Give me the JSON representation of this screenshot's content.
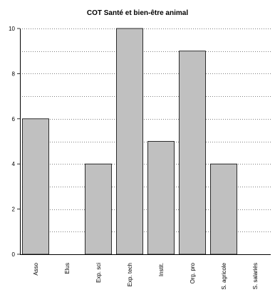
{
  "chart_data": {
    "type": "bar",
    "title": "COT Santé et bien-être animal",
    "xlabel": "",
    "ylabel": "",
    "categories": [
      "Asso",
      "Elus",
      "Exp. sci",
      "Exp. tech",
      "Instit.",
      "Org. pro",
      "S. agricole",
      "S. salariés"
    ],
    "values": [
      6,
      0,
      4,
      10,
      5,
      9,
      4,
      0
    ],
    "ylim": [
      0,
      10
    ],
    "yticks": [
      0,
      2,
      4,
      6,
      8,
      10
    ],
    "grid": true,
    "legend": "none",
    "colors": {
      "bar_fill": "#c0c0c0",
      "bar_stroke": "#000000",
      "grid": "#000000",
      "axis": "#000000"
    }
  }
}
